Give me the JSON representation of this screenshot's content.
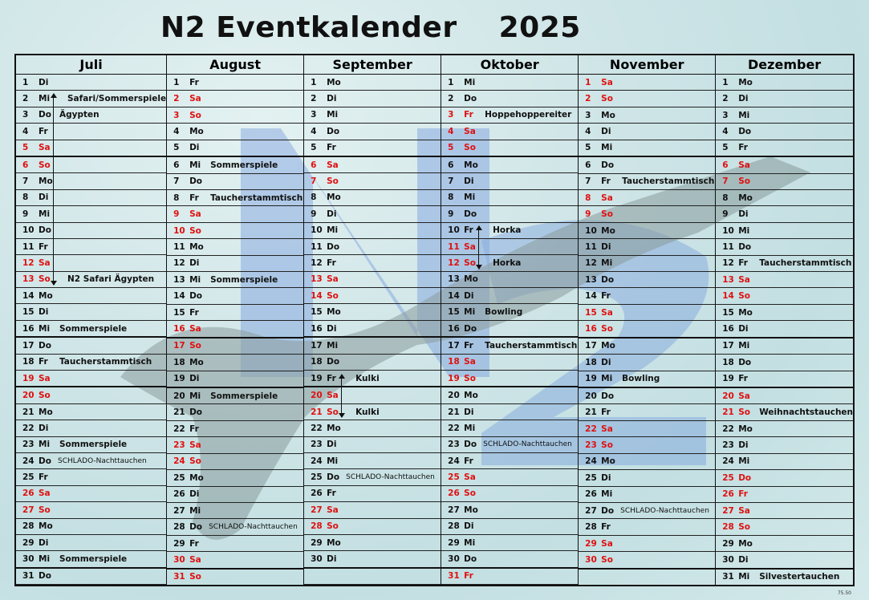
{
  "title": "N2 Eventkalender",
  "year": "2025",
  "version": "75.50",
  "colors": {
    "weekend_holiday": "#e01010",
    "text": "#111111",
    "logo_blue": "#4a78d8",
    "background": "#cfe5e7"
  },
  "months": [
    {
      "name": "Juli",
      "weekdays": [
        "Di",
        "Mi",
        "Do",
        "Fr",
        "Sa",
        "So",
        "Mo",
        "Di",
        "Mi",
        "Do",
        "Fr",
        "Sa",
        "So",
        "Mo",
        "Di",
        "Mi",
        "Do",
        "Fr",
        "Sa",
        "So",
        "Mo",
        "Di",
        "Mi",
        "Do",
        "Fr",
        "Sa",
        "So",
        "Mo",
        "Di",
        "Mi",
        "Do"
      ],
      "red_days": [
        5,
        6,
        12,
        13,
        19,
        20,
        26,
        27
      ],
      "events": {
        "2": "Safari/Sommerspiele",
        "3": "Ägypten",
        "13": "N2 Safari Ägypten",
        "16": "Sommerspiele",
        "18": "Taucherstammtisch",
        "23": "Sommerspiele",
        "24": "SCHLADO-Nachttauchen",
        "30": "Sommerspiele"
      },
      "arrows": [
        [
          2,
          13
        ]
      ]
    },
    {
      "name": "August",
      "weekdays": [
        "Fr",
        "Sa",
        "So",
        "Mo",
        "Di",
        "Mi",
        "Do",
        "Fr",
        "Sa",
        "So",
        "Mo",
        "Di",
        "Mi",
        "Do",
        "Fr",
        "Sa",
        "So",
        "Mo",
        "Di",
        "Mi",
        "Do",
        "Fr",
        "Sa",
        "So",
        "Mo",
        "Di",
        "Mi",
        "Do",
        "Fr",
        "Sa",
        "So"
      ],
      "red_days": [
        2,
        3,
        9,
        10,
        16,
        17,
        23,
        24,
        30,
        31
      ],
      "events": {
        "6": "Sommerspiele",
        "8": "Taucherstammtisch",
        "13": "Sommerspiele",
        "20": "Sommerspiele",
        "28": "SCHLADO-Nachttauchen"
      },
      "arrows": []
    },
    {
      "name": "September",
      "weekdays": [
        "Mo",
        "Di",
        "Mi",
        "Do",
        "Fr",
        "Sa",
        "So",
        "Mo",
        "Di",
        "Mi",
        "Do",
        "Fr",
        "Sa",
        "So",
        "Mo",
        "Di",
        "Mi",
        "Do",
        "Fr",
        "Sa",
        "So",
        "Mo",
        "Di",
        "Mi",
        "Do",
        "Fr",
        "Sa",
        "So",
        "Mo",
        "Di"
      ],
      "red_days": [
        6,
        7,
        13,
        14,
        20,
        21,
        27,
        28
      ],
      "events": {
        "19": "Kulki",
        "21": "Kulki",
        "25": "SCHLADO-Nachttauchen"
      },
      "arrows": [
        [
          19,
          21
        ]
      ]
    },
    {
      "name": "Oktober",
      "weekdays": [
        "Mi",
        "Do",
        "Fr",
        "Sa",
        "So",
        "Mo",
        "Di",
        "Mi",
        "Do",
        "Fr",
        "Sa",
        "So",
        "Mo",
        "Di",
        "Mi",
        "Do",
        "Fr",
        "Sa",
        "So",
        "Mo",
        "Di",
        "Mi",
        "Do",
        "Fr",
        "Sa",
        "So",
        "Mo",
        "Di",
        "Mi",
        "Do",
        "Fr"
      ],
      "red_days": [
        3,
        4,
        5,
        11,
        12,
        18,
        19,
        25,
        26,
        31
      ],
      "events": {
        "3": "Hoppehoppereiter",
        "10": "Horka",
        "12": "Horka",
        "15": "Bowling",
        "17": "Taucherstammtisch",
        "23": "SCHLADO-Nachttauchen"
      },
      "arrows": [
        [
          10,
          12
        ]
      ]
    },
    {
      "name": "November",
      "weekdays": [
        "Sa",
        "So",
        "Mo",
        "Di",
        "Mi",
        "Do",
        "Fr",
        "Sa",
        "So",
        "Mo",
        "Di",
        "Mi",
        "Do",
        "Fr",
        "Sa",
        "So",
        "Mo",
        "Di",
        "Mi",
        "Do",
        "Fr",
        "Sa",
        "So",
        "Mo",
        "Di",
        "Mi",
        "Do",
        "Fr",
        "Sa",
        "So"
      ],
      "red_days": [
        1,
        2,
        8,
        9,
        15,
        16,
        22,
        23,
        29,
        30
      ],
      "events": {
        "7": "Taucherstammtisch",
        "19": "Bowling",
        "27": "SCHLADO-Nachttauchen"
      },
      "arrows": []
    },
    {
      "name": "Dezember",
      "weekdays": [
        "Mo",
        "Di",
        "Mi",
        "Do",
        "Fr",
        "Sa",
        "So",
        "Mo",
        "Di",
        "Mi",
        "Do",
        "Fr",
        "Sa",
        "So",
        "Mo",
        "Di",
        "Mi",
        "Do",
        "Fr",
        "Sa",
        "So",
        "Mo",
        "Di",
        "Mi",
        "Do",
        "Fr",
        "Sa",
        "So",
        "Mo",
        "Di",
        "Mi"
      ],
      "red_days": [
        6,
        7,
        13,
        14,
        20,
        21,
        25,
        26,
        27,
        28
      ],
      "events": {
        "12": "Taucherstammtisch",
        "21": "Weihnachtstauchen",
        "31": "Silvestertauchen"
      },
      "arrows": []
    }
  ]
}
